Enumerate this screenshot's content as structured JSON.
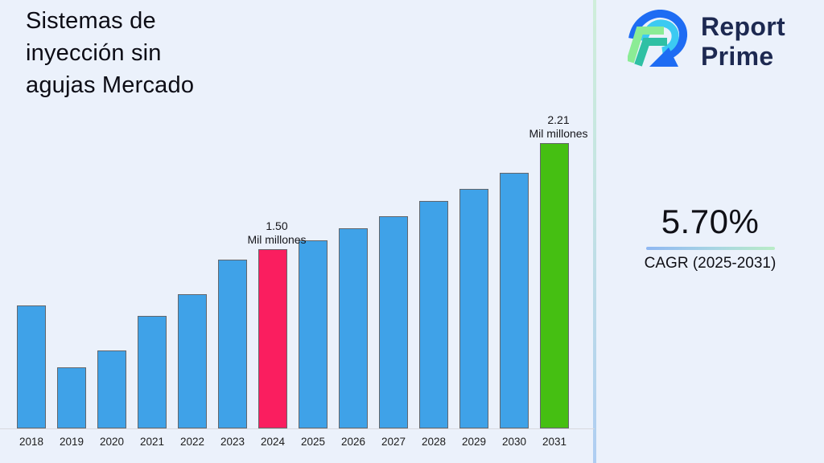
{
  "title": "Sistemas de inyección sin agujas Mercado",
  "logo": {
    "line1": "Report",
    "line2": "Prime",
    "navy": "#1d2951",
    "blue": "#1e6cf3",
    "cyan": "#3ccaf2",
    "light_green": "#8bec95",
    "teal": "#2fc0a4"
  },
  "cagr": {
    "value": "5.70%",
    "label": "CAGR (2025-2031)"
  },
  "colors": {
    "background": "#ebf1fb",
    "bar_default": "#3fa2e8",
    "bar_highlight_2024": "#fa1e5f",
    "bar_forecast_2031": "#45bf12",
    "divider_top": "#cfeeda",
    "divider_bottom": "#aecdf2"
  },
  "chart_data": {
    "type": "bar",
    "title": "Sistemas de inyección sin agujas Mercado",
    "unit": "Mil millones",
    "categories": [
      "2018",
      "2019",
      "2020",
      "2021",
      "2022",
      "2023",
      "2024",
      "2025",
      "2026",
      "2027",
      "2028",
      "2029",
      "2030",
      "2031"
    ],
    "values": [
      1.12,
      0.71,
      0.82,
      1.05,
      1.2,
      1.43,
      1.5,
      1.56,
      1.64,
      1.72,
      1.82,
      1.9,
      2.01,
      2.21
    ],
    "bar_colors": {
      "default": "#3fa2e8",
      "2024": "#fa1e5f",
      "2031": "#45bf12"
    },
    "annotations": [
      {
        "year": "2024",
        "value_label": "1.50",
        "unit_label": "Mil millones"
      },
      {
        "year": "2031",
        "value_label": "2.21",
        "unit_label": "Mil millones"
      }
    ],
    "xlabel": "",
    "ylabel": "",
    "ylim": [
      0.3,
      2.3
    ],
    "grid": false,
    "legend": false
  }
}
